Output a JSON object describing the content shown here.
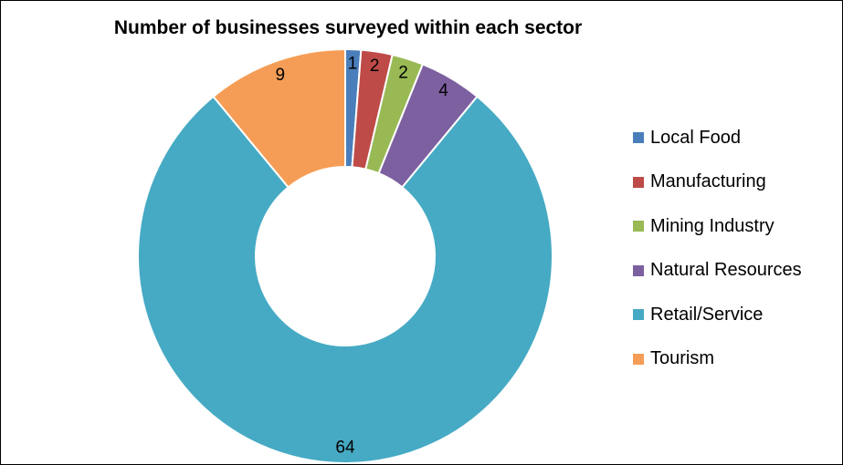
{
  "chart_data": {
    "type": "pie",
    "variant": "donut",
    "title": "Number of businesses surveyed within each sector",
    "categories": [
      "Local Food",
      "Manufacturing",
      "Mining Industry",
      "Natural Resources",
      "Retail/Service",
      "Tourism"
    ],
    "values": [
      1,
      2,
      2,
      4,
      64,
      9
    ],
    "labels": [
      "1",
      "2",
      "2",
      "4",
      "64",
      "9"
    ],
    "colors": [
      "#4a7ebb",
      "#be4b48",
      "#98b954",
      "#7d60a0",
      "#46aac4",
      "#f59d56"
    ],
    "legend_position": "right"
  }
}
